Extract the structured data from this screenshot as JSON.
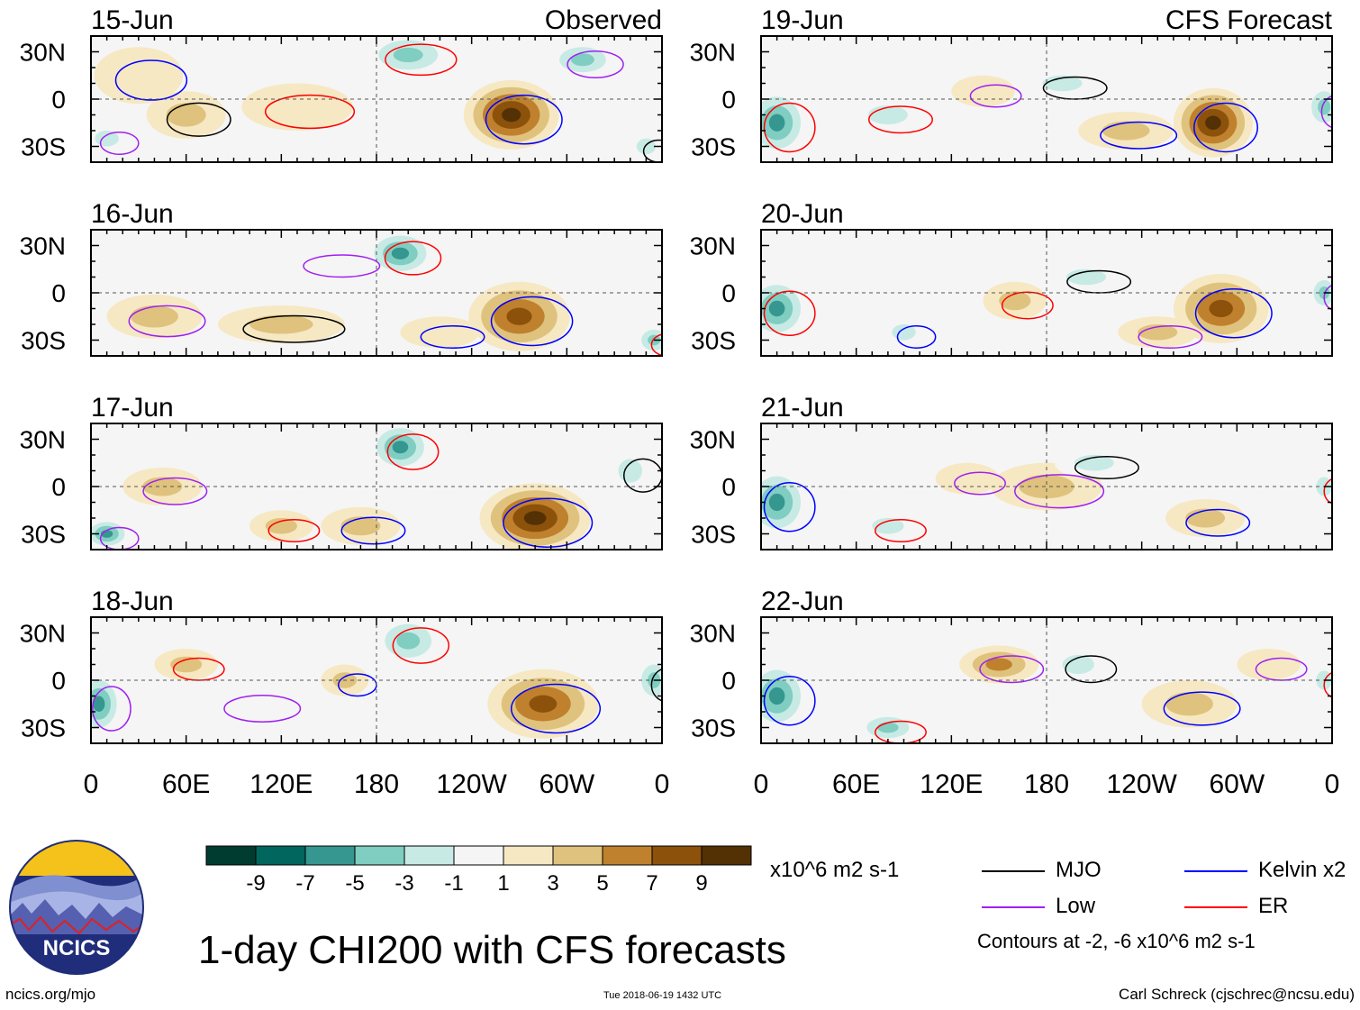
{
  "title": "1-day CHI200 with CFS forecasts",
  "footer": {
    "left": "ncics.org/mjo",
    "center": "Tue 2018-06-19 1432 UTC",
    "right": "Carl Schreck (cjschrec@ncsu.edu)"
  },
  "logo_text": "NCICS",
  "panel_headers": {
    "observed": "Observed",
    "forecast": "CFS Forecast"
  },
  "colorbar": {
    "units": "x10^6 m2 s-1",
    "tick_labels": [
      "-9",
      "-7",
      "-5",
      "-3",
      "-1",
      "1",
      "3",
      "5",
      "7",
      "9"
    ],
    "colors": [
      "#003c30",
      "#01665e",
      "#35978f",
      "#80cdc1",
      "#c7eae5",
      "#f5f5f5",
      "#f6e8c3",
      "#dfc27d",
      "#bf812d",
      "#8c510a",
      "#543005"
    ]
  },
  "legend": {
    "items": [
      {
        "label": "MJO",
        "color": "#000000"
      },
      {
        "label": "Kelvin x2",
        "color": "#0000ff"
      },
      {
        "label": "Low",
        "color": "#a020f0"
      },
      {
        "label": "ER",
        "color": "#ff0000"
      }
    ],
    "contour_note": "Contours at -2, -6 x10^6 m2 s-1"
  },
  "chart_data": {
    "type": "heatmap",
    "variable": "CHI200 anomaly",
    "x_tick_labels": [
      "0",
      "60E",
      "120E",
      "180",
      "120W",
      "60W",
      "0"
    ],
    "y_tick_labels": [
      "30N",
      "0",
      "30S"
    ],
    "xlim": [
      0,
      360
    ],
    "ylim": [
      -40,
      40
    ],
    "panels": [
      {
        "date": "15-Jun",
        "column": "Observed",
        "blobs": [
          [
            265,
            -10,
            30,
            22,
            9
          ],
          [
            200,
            28,
            28,
            14,
            -6
          ],
          [
            310,
            25,
            22,
            12,
            -5
          ],
          [
            60,
            -10,
            25,
            15,
            4
          ],
          [
            30,
            15,
            28,
            18,
            2
          ],
          [
            130,
            -5,
            35,
            15,
            2
          ],
          [
            10,
            -25,
            15,
            10,
            -3
          ],
          [
            350,
            -30,
            12,
            10,
            -4
          ]
        ]
      },
      {
        "date": "16-Jun",
        "column": "Observed",
        "blobs": [
          [
            270,
            -15,
            32,
            22,
            8
          ],
          [
            195,
            25,
            22,
            15,
            -7
          ],
          [
            40,
            -15,
            30,
            14,
            3
          ],
          [
            120,
            -20,
            40,
            12,
            3
          ],
          [
            220,
            -25,
            25,
            10,
            2
          ],
          [
            355,
            -30,
            12,
            10,
            -6
          ],
          [
            150,
            20,
            30,
            10,
            -2
          ]
        ]
      },
      {
        "date": "17-Jun",
        "column": "Observed",
        "blobs": [
          [
            280,
            -20,
            35,
            22,
            9
          ],
          [
            195,
            25,
            20,
            16,
            -7
          ],
          [
            10,
            -30,
            15,
            10,
            -8
          ],
          [
            340,
            10,
            15,
            15,
            -3
          ],
          [
            170,
            -25,
            25,
            12,
            4
          ],
          [
            120,
            -25,
            20,
            10,
            3
          ],
          [
            45,
            0,
            25,
            12,
            3
          ]
        ]
      },
      {
        "date": "18-Jun",
        "column": "Observed",
        "blobs": [
          [
            285,
            -15,
            35,
            22,
            8
          ],
          [
            200,
            25,
            22,
            16,
            -6
          ],
          [
            5,
            -15,
            15,
            20,
            -8
          ],
          [
            355,
            0,
            12,
            15,
            -5
          ],
          [
            160,
            0,
            15,
            10,
            4
          ],
          [
            60,
            10,
            20,
            10,
            3
          ],
          [
            100,
            -15,
            30,
            12,
            -2
          ]
        ]
      },
      {
        "date": "19-Jun",
        "column": "CFS Forecast",
        "blobs": [
          [
            285,
            -15,
            25,
            22,
            9
          ],
          [
            10,
            -15,
            20,
            22,
            -7
          ],
          [
            355,
            -5,
            12,
            15,
            -5
          ],
          [
            190,
            10,
            25,
            10,
            -4
          ],
          [
            230,
            -20,
            30,
            12,
            3
          ],
          [
            80,
            -10,
            25,
            12,
            -3
          ],
          [
            140,
            5,
            20,
            10,
            2
          ]
        ]
      },
      {
        "date": "20-Jun",
        "column": "CFS Forecast",
        "blobs": [
          [
            290,
            -10,
            30,
            22,
            7
          ],
          [
            10,
            -10,
            20,
            20,
            -7
          ],
          [
            355,
            0,
            10,
            12,
            -5
          ],
          [
            205,
            10,
            25,
            10,
            -4
          ],
          [
            90,
            -25,
            15,
            10,
            -4
          ],
          [
            160,
            -5,
            20,
            12,
            4
          ],
          [
            250,
            -25,
            25,
            10,
            3
          ]
        ]
      },
      {
        "date": "21-Jun",
        "column": "CFS Forecast",
        "blobs": [
          [
            10,
            -10,
            20,
            22,
            -7
          ],
          [
            355,
            0,
            10,
            12,
            -4
          ],
          [
            180,
            0,
            35,
            15,
            4
          ],
          [
            210,
            15,
            25,
            10,
            -3
          ],
          [
            280,
            -20,
            25,
            12,
            3
          ],
          [
            80,
            -25,
            20,
            10,
            -3
          ],
          [
            130,
            5,
            20,
            10,
            2
          ]
        ]
      },
      {
        "date": "22-Jun",
        "column": "CFS Forecast",
        "blobs": [
          [
            10,
            -10,
            20,
            22,
            -7
          ],
          [
            355,
            0,
            10,
            12,
            -4
          ],
          [
            150,
            10,
            25,
            12,
            6
          ],
          [
            200,
            10,
            20,
            12,
            -4
          ],
          [
            270,
            -15,
            30,
            15,
            3
          ],
          [
            80,
            -30,
            20,
            10,
            -5
          ],
          [
            320,
            10,
            20,
            10,
            2
          ]
        ]
      }
    ]
  }
}
